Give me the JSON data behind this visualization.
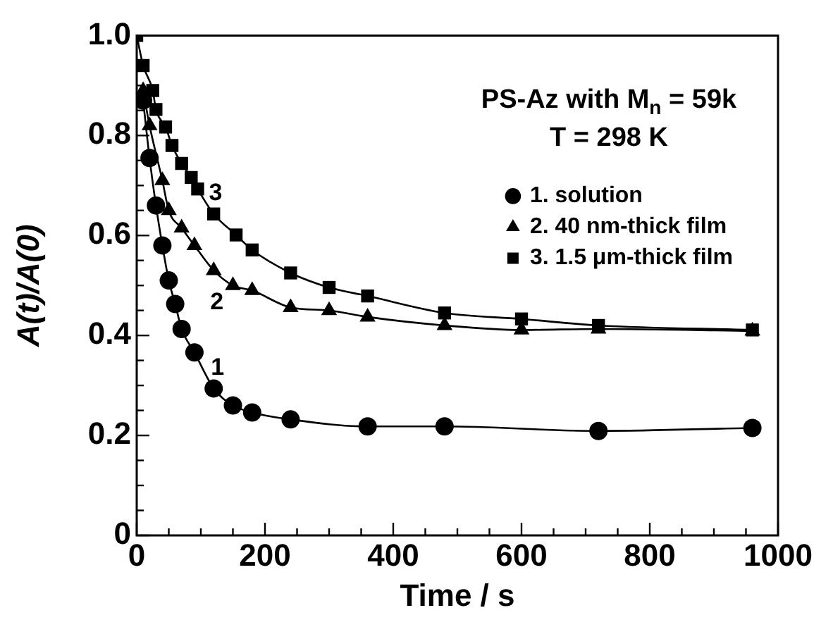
{
  "chart_data": {
    "type": "line",
    "annotations": [
      "PS-Az with M$_{n}$ = 59k",
      "T = 298 K",
      "1",
      "2",
      "3"
    ],
    "xlabel": "Time / s",
    "ylabel": "A(t)/A(0)",
    "xlim": [
      0,
      1000
    ],
    "ylim": [
      0,
      1
    ],
    "xticks": [
      0,
      {
        "value": 50,
        "label": null
      },
      {
        "value": 100,
        "label": null
      },
      {
        "value": 150,
        "label": null
      },
      200,
      {
        "value": 250,
        "label": null
      },
      {
        "value": 300,
        "label": null
      },
      {
        "value": 350,
        "label": null
      },
      400,
      {
        "value": 450,
        "label": null
      },
      {
        "value": 500,
        "label": null
      },
      {
        "value": 550,
        "label": null
      },
      600,
      {
        "value": 650,
        "label": null
      },
      {
        "value": 700,
        "label": null
      },
      {
        "value": 750,
        "label": null
      },
      800,
      {
        "value": 850,
        "label": null
      },
      {
        "value": 900,
        "label": null
      },
      {
        "value": 950,
        "label": null
      },
      1000
    ],
    "yticks": [
      0,
      {
        "value": 0.05,
        "label": null
      },
      {
        "value": 0.1,
        "label": null
      },
      {
        "value": 0.15,
        "label": null
      },
      0.2,
      {
        "value": 0.25,
        "label": null
      },
      {
        "value": 0.3,
        "label": null
      },
      {
        "value": 0.35,
        "label": null
      },
      0.4,
      {
        "value": 0.45,
        "label": null
      },
      {
        "value": 0.5,
        "label": null
      },
      {
        "value": 0.55,
        "label": null
      },
      0.6,
      {
        "value": 0.65,
        "label": null
      },
      {
        "value": 0.7,
        "label": null
      },
      {
        "value": 0.75,
        "label": null
      },
      0.8,
      {
        "value": 0.85,
        "label": null
      },
      {
        "value": 0.9,
        "label": null
      },
      {
        "value": 0.95,
        "label": null
      },
      {
        "value": 1,
        "label": "1.0"
      }
    ],
    "grid": false,
    "legend": "top right",
    "line_style": "solid",
    "series": [
      {
        "name": "1. solution",
        "color": "#000000",
        "marker": "circle",
        "x": [
          10,
          20,
          30,
          40,
          50,
          60,
          70,
          90,
          120,
          150,
          180,
          240,
          360,
          480,
          720,
          960
        ],
        "values": [
          0.87,
          0.755,
          0.66,
          0.58,
          0.51,
          0.463,
          0.413,
          0.366,
          0.294,
          0.26,
          0.246,
          0.232,
          0.218,
          0.218,
          0.209,
          0.215
        ]
      },
      {
        "name": "2. 40 nm-thick film",
        "color": "#000000",
        "marker": "triangle",
        "x": [
          10,
          20,
          40,
          50,
          70,
          90,
          120,
          150,
          180,
          240,
          300,
          360,
          480,
          600,
          720,
          960
        ],
        "values": [
          0.89,
          0.82,
          0.71,
          0.65,
          0.615,
          0.58,
          0.53,
          0.5,
          0.49,
          0.456,
          0.45,
          0.437,
          0.42,
          0.411,
          0.413,
          0.409
        ]
      },
      {
        "name": "3. 1.5 μm-thick film",
        "color": "#000000",
        "marker": "square",
        "x": [
          0,
          10,
          25,
          30,
          45,
          55,
          70,
          85,
          95,
          120,
          155,
          180,
          240,
          300,
          360,
          480,
          600,
          720,
          960
        ],
        "values": [
          1.0,
          0.94,
          0.89,
          0.852,
          0.817,
          0.78,
          0.744,
          0.716,
          0.693,
          0.643,
          0.601,
          0.571,
          0.525,
          0.496,
          0.479,
          0.445,
          0.433,
          0.42,
          0.411
        ]
      }
    ]
  }
}
